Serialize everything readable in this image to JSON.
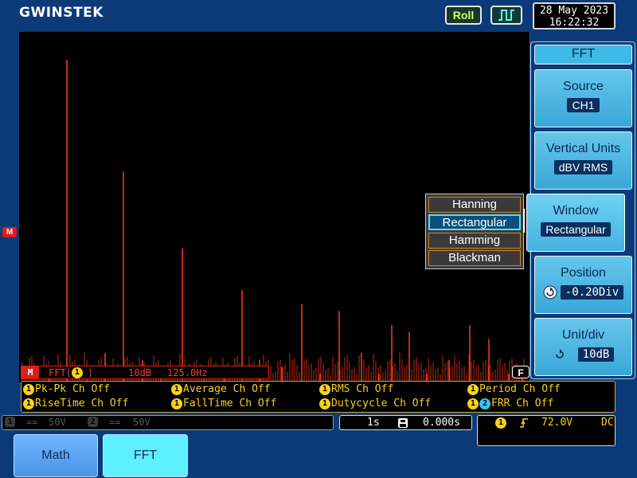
{
  "header": {
    "brand": "GWINSTEK",
    "roll_label": "Roll",
    "trigger_icon": "square-pulse-icon",
    "date": "28 May 2023",
    "time": "16:22:32"
  },
  "screen": {
    "math_marker": "M",
    "fft_readout": {
      "tag": "M",
      "func": "FFT(",
      "source_chip": "1",
      "close": ")",
      "scale": "10dB",
      "freq": "125.0Hz"
    },
    "flag": "F"
  },
  "chart_data": {
    "type": "bar",
    "description_free": true,
    "color": "#ff3a1a",
    "x": [
      38,
      60,
      85,
      108,
      131,
      155,
      178,
      205,
      232,
      258,
      280,
      302,
      330,
      355,
      378,
      402,
      430,
      452,
      468,
      490,
      512,
      540,
      566,
      590,
      615,
      632
    ],
    "values": [
      2,
      46,
      1,
      4,
      30,
      3,
      2,
      19,
      2,
      1,
      13,
      3,
      2,
      11,
      1,
      10,
      4,
      1,
      8,
      7,
      1,
      3,
      8,
      6,
      1,
      2
    ],
    "ylim": [
      0,
      50
    ]
  },
  "measurements": [
    {
      "chip": "1",
      "text": "Pk-Pk Ch Off"
    },
    {
      "chip": "1",
      "text": "Average Ch Off"
    },
    {
      "chip": "1",
      "text": "RMS Ch Off"
    },
    {
      "chip": "1",
      "text": "Period Ch Off"
    },
    {
      "chip": "1",
      "text": "RiseTime Ch Off"
    },
    {
      "chip": "1",
      "text": "FallTime Ch Off"
    },
    {
      "chip": "1",
      "text": "Dutycycle Ch Off"
    },
    {
      "chip": "1",
      "chip2": "2",
      "text": "FRR Ch Off"
    }
  ],
  "status": {
    "ch1_chip": "1",
    "ch1_coupling": "==",
    "ch1_scale": "50V",
    "ch2_chip": "2",
    "ch2_coupling": "==",
    "ch2_scale": "50V",
    "timebase": "1s",
    "delay_icon": "h-delay-icon",
    "delay": "0.000s",
    "trig_chip": "1",
    "trig_slope": "rising-edge-icon",
    "trig_level": "72.0V",
    "trig_coupling": "DC"
  },
  "tabs": [
    {
      "label": "Math"
    },
    {
      "label": "FFT"
    }
  ],
  "menu": {
    "title": "FFT",
    "source": {
      "label": "Source",
      "value": "CH1"
    },
    "vertical_units": {
      "label": "Vertical Units",
      "value": "dBV RMS"
    },
    "window": {
      "label": "Window",
      "value": "Rectangular"
    },
    "position": {
      "label": "Position",
      "value": "-0.20Div"
    },
    "unit_div": {
      "label": "Unit/div",
      "value": "10dB"
    }
  },
  "window_options": [
    "Hanning",
    "Rectangular",
    "Hamming",
    "Blackman"
  ]
}
